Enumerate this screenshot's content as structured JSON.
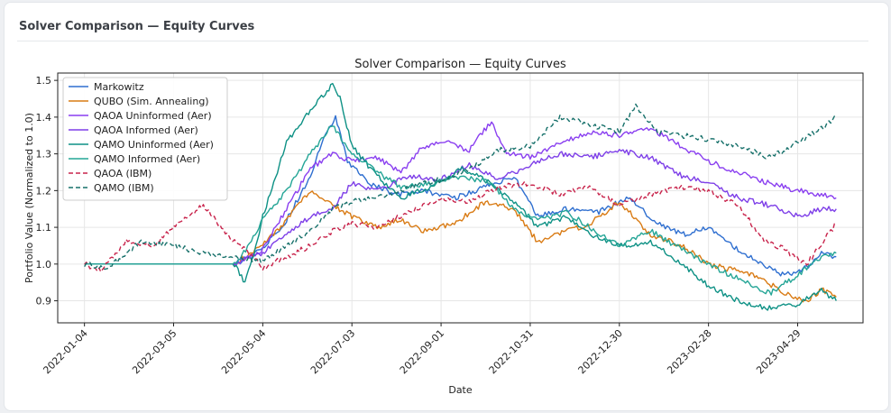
{
  "card": {
    "title": "Solver Comparison — Equity Curves"
  },
  "chart_data": {
    "type": "line",
    "title": "Solver Comparison — Equity Curves",
    "xlabel": "Date",
    "ylabel": "Portfolio Value (Normalized to 1.0)",
    "xlim": [
      "2021-12-17",
      "2023-06-12"
    ],
    "ylim": [
      0.84,
      1.52
    ],
    "xticks": [
      "2022-01-04",
      "2022-03-05",
      "2022-05-04",
      "2022-07-03",
      "2022-09-01",
      "2022-10-31",
      "2022-12-30",
      "2023-02-28",
      "2023-04-29"
    ],
    "yticks": [
      0.9,
      1.0,
      1.1,
      1.2,
      1.3,
      1.4,
      1.5
    ],
    "grid": true,
    "legend_position": "top-left",
    "series": [
      {
        "name": "Markowitz",
        "color": "#2f6fd0",
        "dash": "solid",
        "x": [
          "2022-01-04",
          "2022-03-05",
          "2022-04-15",
          "2022-04-25",
          "2022-05-04",
          "2022-05-20",
          "2022-06-05",
          "2022-06-15",
          "2022-06-22",
          "2022-06-30",
          "2022-07-15",
          "2022-08-01",
          "2022-08-20",
          "2022-09-10",
          "2022-10-01",
          "2022-10-20",
          "2022-11-05",
          "2022-11-25",
          "2022-12-15",
          "2023-01-05",
          "2023-01-25",
          "2023-02-10",
          "2023-02-28",
          "2023-03-20",
          "2023-04-05",
          "2023-04-20",
          "2023-05-05",
          "2023-05-15",
          "2023-05-25"
        ],
        "y": [
          1.0,
          1.0,
          1.0,
          1.02,
          1.04,
          1.12,
          1.24,
          1.35,
          1.4,
          1.28,
          1.22,
          1.19,
          1.2,
          1.18,
          1.21,
          1.24,
          1.13,
          1.15,
          1.14,
          1.18,
          1.11,
          1.08,
          1.1,
          1.04,
          1.0,
          0.97,
          0.99,
          1.03,
          1.02
        ]
      },
      {
        "name": "QUBO (Sim. Annealing)",
        "color": "#d97b14",
        "dash": "solid",
        "x": [
          "2022-01-04",
          "2022-03-05",
          "2022-04-15",
          "2022-04-25",
          "2022-05-04",
          "2022-05-20",
          "2022-06-05",
          "2022-06-20",
          "2022-07-03",
          "2022-07-20",
          "2022-08-05",
          "2022-08-20",
          "2022-09-10",
          "2022-10-01",
          "2022-10-20",
          "2022-11-05",
          "2022-11-25",
          "2022-12-10",
          "2022-12-30",
          "2023-01-20",
          "2023-02-10",
          "2023-02-28",
          "2023-03-20",
          "2023-04-05",
          "2023-04-20",
          "2023-05-05",
          "2023-05-15",
          "2023-05-25"
        ],
        "y": [
          1.0,
          1.0,
          1.0,
          1.03,
          1.05,
          1.12,
          1.2,
          1.16,
          1.13,
          1.1,
          1.12,
          1.09,
          1.11,
          1.17,
          1.15,
          1.06,
          1.09,
          1.11,
          1.17,
          1.08,
          1.05,
          1.0,
          0.98,
          0.96,
          0.92,
          0.9,
          0.93,
          0.91
        ]
      },
      {
        "name": "QAOA Uninformed (Aer)",
        "color": "#8a3ff0",
        "dash": "solid",
        "x": [
          "2022-01-04",
          "2022-03-05",
          "2022-04-15",
          "2022-04-25",
          "2022-05-04",
          "2022-05-20",
          "2022-06-05",
          "2022-06-20",
          "2022-07-03",
          "2022-07-20",
          "2022-08-05",
          "2022-08-20",
          "2022-09-05",
          "2022-09-20",
          "2022-10-05",
          "2022-10-15",
          "2022-10-31",
          "2022-11-20",
          "2022-12-10",
          "2022-12-30",
          "2023-01-20",
          "2023-02-10",
          "2023-02-28",
          "2023-03-20",
          "2023-04-10",
          "2023-04-29",
          "2023-05-15",
          "2023-05-25"
        ],
        "y": [
          1.0,
          1.0,
          1.0,
          1.02,
          1.04,
          1.15,
          1.26,
          1.3,
          1.28,
          1.29,
          1.25,
          1.32,
          1.33,
          1.31,
          1.39,
          1.3,
          1.29,
          1.33,
          1.36,
          1.35,
          1.37,
          1.32,
          1.28,
          1.25,
          1.22,
          1.2,
          1.19,
          1.18
        ]
      },
      {
        "name": "QAOA Informed (Aer)",
        "color": "#7e3fe8",
        "dash": "solid",
        "x": [
          "2022-01-04",
          "2022-03-05",
          "2022-04-15",
          "2022-04-25",
          "2022-05-04",
          "2022-05-20",
          "2022-06-05",
          "2022-06-20",
          "2022-07-03",
          "2022-07-20",
          "2022-08-10",
          "2022-09-01",
          "2022-09-20",
          "2022-10-10",
          "2022-10-31",
          "2022-11-20",
          "2022-12-10",
          "2022-12-30",
          "2023-01-20",
          "2023-02-10",
          "2023-02-28",
          "2023-03-20",
          "2023-04-10",
          "2023-04-29",
          "2023-05-15",
          "2023-05-25"
        ],
        "y": [
          1.0,
          1.0,
          1.0,
          1.02,
          1.03,
          1.08,
          1.13,
          1.15,
          1.22,
          1.2,
          1.24,
          1.23,
          1.27,
          1.23,
          1.27,
          1.3,
          1.29,
          1.31,
          1.29,
          1.24,
          1.22,
          1.18,
          1.16,
          1.13,
          1.15,
          1.15
        ]
      },
      {
        "name": "QAMO Uninformed (Aer)",
        "color": "#0e9185",
        "dash": "solid",
        "x": [
          "2022-01-04",
          "2022-03-05",
          "2022-04-15",
          "2022-04-22",
          "2022-04-28",
          "2022-05-04",
          "2022-05-20",
          "2022-06-05",
          "2022-06-20",
          "2022-06-25",
          "2022-07-03",
          "2022-07-20",
          "2022-08-05",
          "2022-08-25",
          "2022-09-15",
          "2022-10-05",
          "2022-10-20",
          "2022-11-05",
          "2022-11-25",
          "2022-12-10",
          "2022-12-30",
          "2023-01-20",
          "2023-02-10",
          "2023-02-28",
          "2023-03-20",
          "2023-04-10",
          "2023-04-29",
          "2023-05-15",
          "2023-05-25"
        ],
        "y": [
          1.0,
          1.0,
          1.0,
          0.95,
          1.02,
          1.13,
          1.33,
          1.42,
          1.49,
          1.45,
          1.32,
          1.24,
          1.18,
          1.21,
          1.26,
          1.22,
          1.17,
          1.1,
          1.13,
          1.08,
          1.05,
          1.06,
          1.0,
          0.94,
          0.9,
          0.88,
          0.89,
          0.93,
          0.9
        ]
      },
      {
        "name": "QAMO Informed (Aer)",
        "color": "#24a596",
        "dash": "solid",
        "x": [
          "2022-01-04",
          "2022-03-05",
          "2022-04-15",
          "2022-04-25",
          "2022-05-04",
          "2022-05-20",
          "2022-06-05",
          "2022-06-20",
          "2022-07-03",
          "2022-07-20",
          "2022-08-05",
          "2022-08-25",
          "2022-09-15",
          "2022-10-05",
          "2022-10-20",
          "2022-11-05",
          "2022-11-25",
          "2022-12-10",
          "2022-12-30",
          "2023-01-20",
          "2023-02-10",
          "2023-02-28",
          "2023-03-20",
          "2023-04-10",
          "2023-04-29",
          "2023-05-15",
          "2023-05-25"
        ],
        "y": [
          1.0,
          1.0,
          1.0,
          1.05,
          1.12,
          1.2,
          1.3,
          1.38,
          1.3,
          1.25,
          1.21,
          1.22,
          1.24,
          1.22,
          1.15,
          1.12,
          1.14,
          1.1,
          1.05,
          1.09,
          1.04,
          1.0,
          0.96,
          0.92,
          0.97,
          1.02,
          1.03
        ]
      },
      {
        "name": "QAOA (IBM)",
        "color": "#c8234b",
        "dash": "dashed",
        "x": [
          "2022-01-04",
          "2022-01-15",
          "2022-02-01",
          "2022-02-20",
          "2022-03-05",
          "2022-03-25",
          "2022-04-10",
          "2022-04-25",
          "2022-05-04",
          "2022-05-20",
          "2022-06-05",
          "2022-06-20",
          "2022-07-03",
          "2022-07-20",
          "2022-08-10",
          "2022-09-01",
          "2022-09-20",
          "2022-10-10",
          "2022-10-31",
          "2022-11-20",
          "2022-12-10",
          "2022-12-30",
          "2023-01-20",
          "2023-02-10",
          "2023-02-28",
          "2023-03-20",
          "2023-04-05",
          "2023-04-20",
          "2023-05-05",
          "2023-05-25"
        ],
        "y": [
          1.0,
          0.98,
          1.06,
          1.05,
          1.1,
          1.16,
          1.08,
          1.03,
          0.99,
          1.02,
          1.05,
          1.09,
          1.11,
          1.1,
          1.14,
          1.18,
          1.17,
          1.21,
          1.22,
          1.19,
          1.21,
          1.16,
          1.19,
          1.21,
          1.2,
          1.16,
          1.07,
          1.04,
          1.0,
          1.11
        ]
      },
      {
        "name": "QAMO (IBM)",
        "color": "#16706a",
        "dash": "dashed",
        "x": [
          "2022-01-04",
          "2022-01-20",
          "2022-02-10",
          "2022-03-05",
          "2022-03-25",
          "2022-04-15",
          "2022-05-04",
          "2022-05-20",
          "2022-06-05",
          "2022-06-20",
          "2022-07-03",
          "2022-07-20",
          "2022-08-10",
          "2022-09-01",
          "2022-09-20",
          "2022-10-10",
          "2022-10-31",
          "2022-11-20",
          "2022-12-10",
          "2022-12-30",
          "2023-01-10",
          "2023-01-25",
          "2023-02-10",
          "2023-02-28",
          "2023-03-20",
          "2023-04-10",
          "2023-04-29",
          "2023-05-15",
          "2023-05-25"
        ],
        "y": [
          1.0,
          0.99,
          1.06,
          1.05,
          1.03,
          1.02,
          1.01,
          1.05,
          1.09,
          1.15,
          1.17,
          1.18,
          1.21,
          1.23,
          1.26,
          1.31,
          1.32,
          1.4,
          1.38,
          1.36,
          1.43,
          1.36,
          1.35,
          1.34,
          1.32,
          1.29,
          1.33,
          1.37,
          1.4
        ]
      }
    ]
  }
}
